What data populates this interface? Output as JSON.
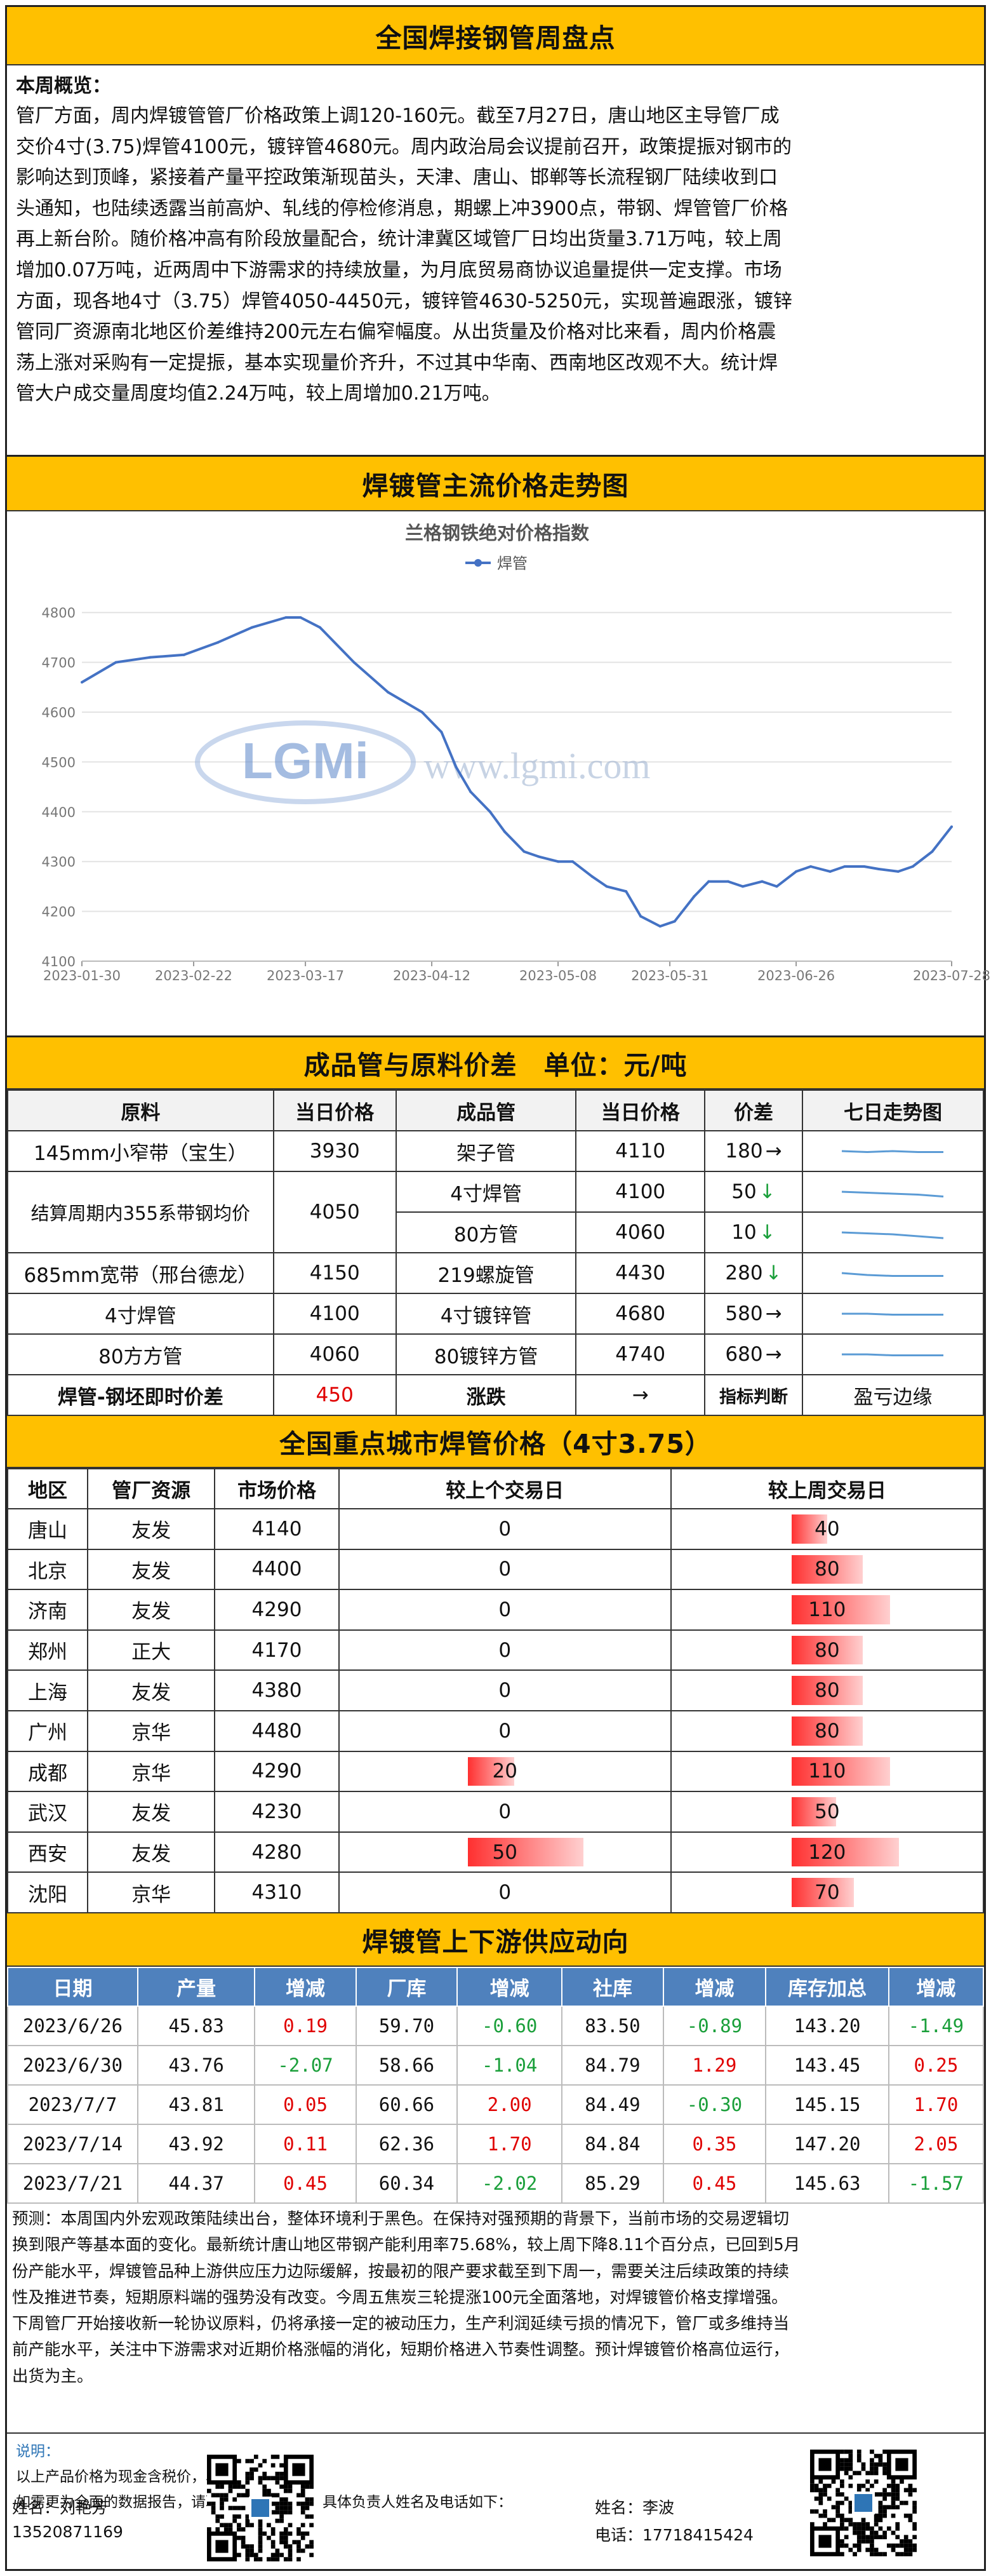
{
  "title": "全国焊接钢管周盘点",
  "summary": {
    "heading": "本周概览：",
    "lines": [
      "管厂方面，周内焊镀管管厂价格政策上调120-160元。截至7月27日，唐山地区主导管厂成",
      "交价4寸(3.75)焊管4100元，镀锌管4680元。周内政治局会议提前召开，政策提振对钢市的",
      "影响达到顶峰，紧接着产量平控政策渐现苗头，天津、唐山、邯郸等长流程钢厂陆续收到口",
      "头通知，也陆续透露当前高炉、轧线的停检修消息，期螺上冲3900点，带钢、焊管管厂价格",
      "再上新台阶。随价格冲高有阶段放量配合，统计津冀区域管厂日均出货量3.71万吨，较上周",
      "增加0.07万吨，近两周中下游需求的持续放量，为月底贸易商协议追量提供一定支撑。市场",
      "方面，现各地4寸（3.75）焊管4050-4450元，镀锌管4630-5250元，实现普遍跟涨，镀锌",
      "管同厂资源南北地区价差维持200元左右偏窄幅度。从出货量及价格对比来看，周内价格震",
      "荡上涨对采购有一定提振，基本实现量价齐升，不过其中华南、西南地区改观不大。统计焊",
      "管大户成交量周度均值2.24万吨，较上周增加0.21万吨。"
    ]
  },
  "section_price_trend": "焊镀管主流价格走势图",
  "chart_data": {
    "type": "line",
    "title": "兰格钢铁绝对价格指数",
    "series": [
      {
        "name": "焊管",
        "color": "#4472c4",
        "x": [
          "2023-01-30",
          "2023-02-06",
          "2023-02-13",
          "2023-02-20",
          "2023-02-27",
          "2023-03-06",
          "2023-03-13",
          "2023-03-16",
          "2023-03-20",
          "2023-03-27",
          "2023-04-03",
          "2023-04-10",
          "2023-04-14",
          "2023-04-17",
          "2023-04-20",
          "2023-04-24",
          "2023-04-27",
          "2023-05-01",
          "2023-05-04",
          "2023-05-08",
          "2023-05-11",
          "2023-05-15",
          "2023-05-18",
          "2023-05-22",
          "2023-05-25",
          "2023-05-29",
          "2023-06-01",
          "2023-06-05",
          "2023-06-08",
          "2023-06-12",
          "2023-06-15",
          "2023-06-19",
          "2023-06-22",
          "2023-06-26",
          "2023-06-29",
          "2023-07-03",
          "2023-07-06",
          "2023-07-10",
          "2023-07-13",
          "2023-07-17",
          "2023-07-20",
          "2023-07-24",
          "2023-07-28"
        ],
        "y": [
          4660,
          4700,
          4710,
          4715,
          4740,
          4770,
          4790,
          4790,
          4770,
          4700,
          4640,
          4600,
          4560,
          4490,
          4440,
          4400,
          4360,
          4320,
          4310,
          4300,
          4300,
          4270,
          4250,
          4240,
          4190,
          4170,
          4180,
          4230,
          4260,
          4260,
          4250,
          4260,
          4250,
          4280,
          4290,
          4280,
          4290,
          4290,
          4285,
          4280,
          4290,
          4320,
          4370
        ]
      }
    ],
    "xticks": [
      "2023-01-30",
      "2023-02-22",
      "2023-03-17",
      "2023-04-12",
      "2023-05-08",
      "2023-05-31",
      "2023-06-26",
      "2023-07-28"
    ],
    "yticks": [
      4100,
      4200,
      4300,
      4400,
      4500,
      4600,
      4700,
      4800
    ],
    "ylim": [
      4100,
      4850
    ],
    "grid": true,
    "legend": "top-center",
    "watermark": "www.lgmi.com"
  },
  "spread": {
    "title": "成品管与原料价差　单位：元/吨",
    "headers": [
      "原料",
      "当日价格",
      "成品管",
      "当日价格",
      "价差",
      "七日走势图"
    ],
    "rows": [
      {
        "raw": "145mm小窄带（宝生）",
        "raw_price": "3930",
        "prod": "架子管",
        "prod_price": "4110",
        "diff": "180",
        "arrow": "→",
        "dir": "flat"
      },
      {
        "raw": "结算周期内355系带钢均价",
        "raw_price": "4050",
        "prod": "4寸焊管",
        "prod_price": "4100",
        "diff": "50",
        "arrow": "↓",
        "dir": "down"
      },
      {
        "raw": "",
        "raw_price": "",
        "prod": "80方管",
        "prod_price": "4060",
        "diff": "10",
        "arrow": "↓",
        "dir": "down"
      },
      {
        "raw": "685mm宽带（邢台德龙）",
        "raw_price": "4150",
        "prod": "219螺旋管",
        "prod_price": "4430",
        "diff": "280",
        "arrow": "↓",
        "dir": "down"
      },
      {
        "raw": "4寸焊管",
        "raw_price": "4100",
        "prod": "4寸镀锌管",
        "prod_price": "4680",
        "diff": "580",
        "arrow": "→",
        "dir": "flat"
      },
      {
        "raw": "80方方管",
        "raw_price": "4060",
        "prod": "80镀锌方管",
        "prod_price": "4740",
        "diff": "680",
        "arrow": "→",
        "dir": "flat"
      }
    ],
    "footer": {
      "label": "焊管-钢坯即时价差",
      "value": "450",
      "change_label": "涨跌",
      "change_value": "→",
      "judge_label": "指标判断",
      "judge_value": "盈亏边缘"
    }
  },
  "cities": {
    "title": "全国重点城市焊管价格（4寸3.75）",
    "headers": [
      "地区",
      "管厂资源",
      "市场价格",
      "较上个交易日",
      "较上周交易日"
    ],
    "rows": [
      {
        "city": "唐山",
        "src": "友发",
        "price": "4140",
        "d1": "0",
        "d1v": 0,
        "w1": "40",
        "w1v": 40
      },
      {
        "city": "北京",
        "src": "友发",
        "price": "4400",
        "d1": "0",
        "d1v": 0,
        "w1": "80",
        "w1v": 80
      },
      {
        "city": "济南",
        "src": "友发",
        "price": "4290",
        "d1": "0",
        "d1v": 0,
        "w1": "110",
        "w1v": 110
      },
      {
        "city": "郑州",
        "src": "正大",
        "price": "4170",
        "d1": "0",
        "d1v": 0,
        "w1": "80",
        "w1v": 80
      },
      {
        "city": "上海",
        "src": "友发",
        "price": "4380",
        "d1": "0",
        "d1v": 0,
        "w1": "80",
        "w1v": 80
      },
      {
        "city": "广州",
        "src": "京华",
        "price": "4480",
        "d1": "0",
        "d1v": 0,
        "w1": "80",
        "w1v": 80
      },
      {
        "city": "成都",
        "src": "京华",
        "price": "4290",
        "d1": "20",
        "d1v": 20,
        "w1": "110",
        "w1v": 110
      },
      {
        "city": "武汉",
        "src": "友发",
        "price": "4230",
        "d1": "0",
        "d1v": 0,
        "w1": "50",
        "w1v": 50
      },
      {
        "city": "西安",
        "src": "友发",
        "price": "4280",
        "d1": "50",
        "d1v": 50,
        "w1": "120",
        "w1v": 120
      },
      {
        "city": "沈阳",
        "src": "京华",
        "price": "4310",
        "d1": "0",
        "d1v": 0,
        "w1": "70",
        "w1v": 70
      }
    ]
  },
  "supply": {
    "title": "焊镀管上下游供应动向",
    "headers": [
      "日期",
      "产量",
      "增减",
      "厂库",
      "增减",
      "社库",
      "增减",
      "库存加总",
      "增减"
    ],
    "rows": [
      [
        "2023/6/26",
        "45.83",
        "0.19",
        "59.70",
        "-0.60",
        "83.50",
        "-0.89",
        "143.20",
        "-1.49"
      ],
      [
        "2023/6/30",
        "43.76",
        "-2.07",
        "58.66",
        "-1.04",
        "84.79",
        "1.29",
        "143.45",
        "0.25"
      ],
      [
        "2023/7/7",
        "43.81",
        "0.05",
        "60.66",
        "2.00",
        "84.49",
        "-0.30",
        "145.15",
        "1.70"
      ],
      [
        "2023/7/14",
        "43.92",
        "0.11",
        "62.36",
        "1.70",
        "84.84",
        "0.35",
        "147.20",
        "2.05"
      ],
      [
        "2023/7/21",
        "44.37",
        "0.45",
        "60.34",
        "-2.02",
        "85.29",
        "0.45",
        "145.63",
        "-1.57"
      ]
    ]
  },
  "forecast": {
    "lines": [
      "预测：本周国内外宏观政策陆续出台，整体环境利于黑色。在保持对强预期的背景下，当前市场的交易逻辑切",
      "换到限产等基本面的变化。最新统计唐山地区带钢产能利用率75.68%，较上周下降8.11个百分点，已回到5月",
      "份产能水平，焊镀管品种上游供应压力边际缓解，按最初的限产要求截至到下周一，需要关注后续政策的持续",
      "性及推进节奏，短期原料端的强势没有改变。今周五焦炭三轮提涨100元全面落地，对焊镀管价格支撑增强。",
      "下周管厂开始接收新一轮协议原料，仍将承接一定的被动压力，生产利润延续亏损的情况下，管厂或多维持当",
      "前产能水平，关注中下游需求对近期价格涨幅的消化，短期价格进入节奏性调整。预计焊镀管价格高位运行，",
      "出货为主。"
    ]
  },
  "notes": {
    "label": "说明：",
    "line1": "以上产品价格为现金含税价，单位为元/吨。",
    "line2": "如需更为全面的数据报告，请联系兰格钢铁网，具体负责人姓名及电话如下："
  },
  "contacts": [
    {
      "name": "姓名：刘艳芳",
      "phone": "13520871169"
    },
    {
      "name": "姓名：李波",
      "phone": "电话：17718415424"
    }
  ]
}
